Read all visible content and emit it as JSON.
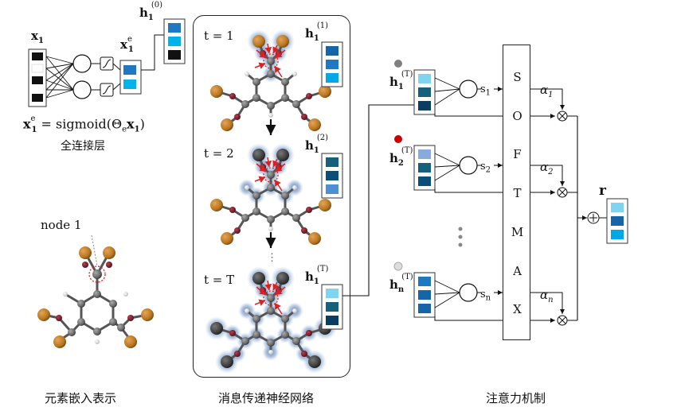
{
  "embedding": {
    "x1_label": "x",
    "x1_sub": "1",
    "x1e_label": "x",
    "x1e_sub": "1",
    "x1e_sup": "e",
    "h0_label": "h",
    "h0_sub": "1",
    "h0_sup": "(0)",
    "formula_lhs": "x",
    "formula_lhs_sub": "1",
    "formula_lhs_sup": "e",
    "formula_rhs": "= sigmoid(Θ",
    "formula_theta_sub": "e",
    "formula_tail": "x",
    "formula_tail_sub": "1",
    "formula_close": ")",
    "fc_caption": "全连接层",
    "node_label": "node 1",
    "section_caption": "元素嵌入表示"
  },
  "message_passing": {
    "steps": [
      {
        "t_label": "t = 1",
        "h_sup": "(1)"
      },
      {
        "t_label": "t = 2",
        "h_sup": "(2)"
      },
      {
        "t_label": "t = T",
        "h_sup": "(T)"
      }
    ],
    "h_label": "h",
    "h_sub": "1",
    "ellipsis": "⋮",
    "section_caption": "消息传递神经网络"
  },
  "attention": {
    "rows": [
      {
        "h": "h",
        "sub": "1",
        "sup": "(T)",
        "s": "s",
        "s_sub": "1",
        "alpha": "α",
        "alpha_sub": "1",
        "dot_color": "#808080"
      },
      {
        "h": "h",
        "sub": "2",
        "sup": "(T)",
        "s": "s",
        "s_sub": "2",
        "alpha": "α",
        "alpha_sub": "2",
        "dot_color": "#cc0000"
      },
      {
        "h": "h",
        "sub": "n",
        "sup": "(T)",
        "s": "s",
        "s_sub": "n",
        "alpha": "α",
        "alpha_sub": "n",
        "dot_color": "#dddddd"
      }
    ],
    "softmax_letters": [
      "S",
      "O",
      "F",
      "T",
      "M",
      "A",
      "X"
    ],
    "r_label": "r",
    "section_caption": "注意力机制"
  },
  "colors": {
    "vec_dark": "#0a3d62",
    "vec_mid": "#1565a8",
    "vec_cyan": "#00a8e8",
    "vec_light": "#7fd4f0",
    "atom_brown": "#b8761f",
    "atom_gray": "#6b6b6b",
    "arrow_red": "#e02020"
  }
}
